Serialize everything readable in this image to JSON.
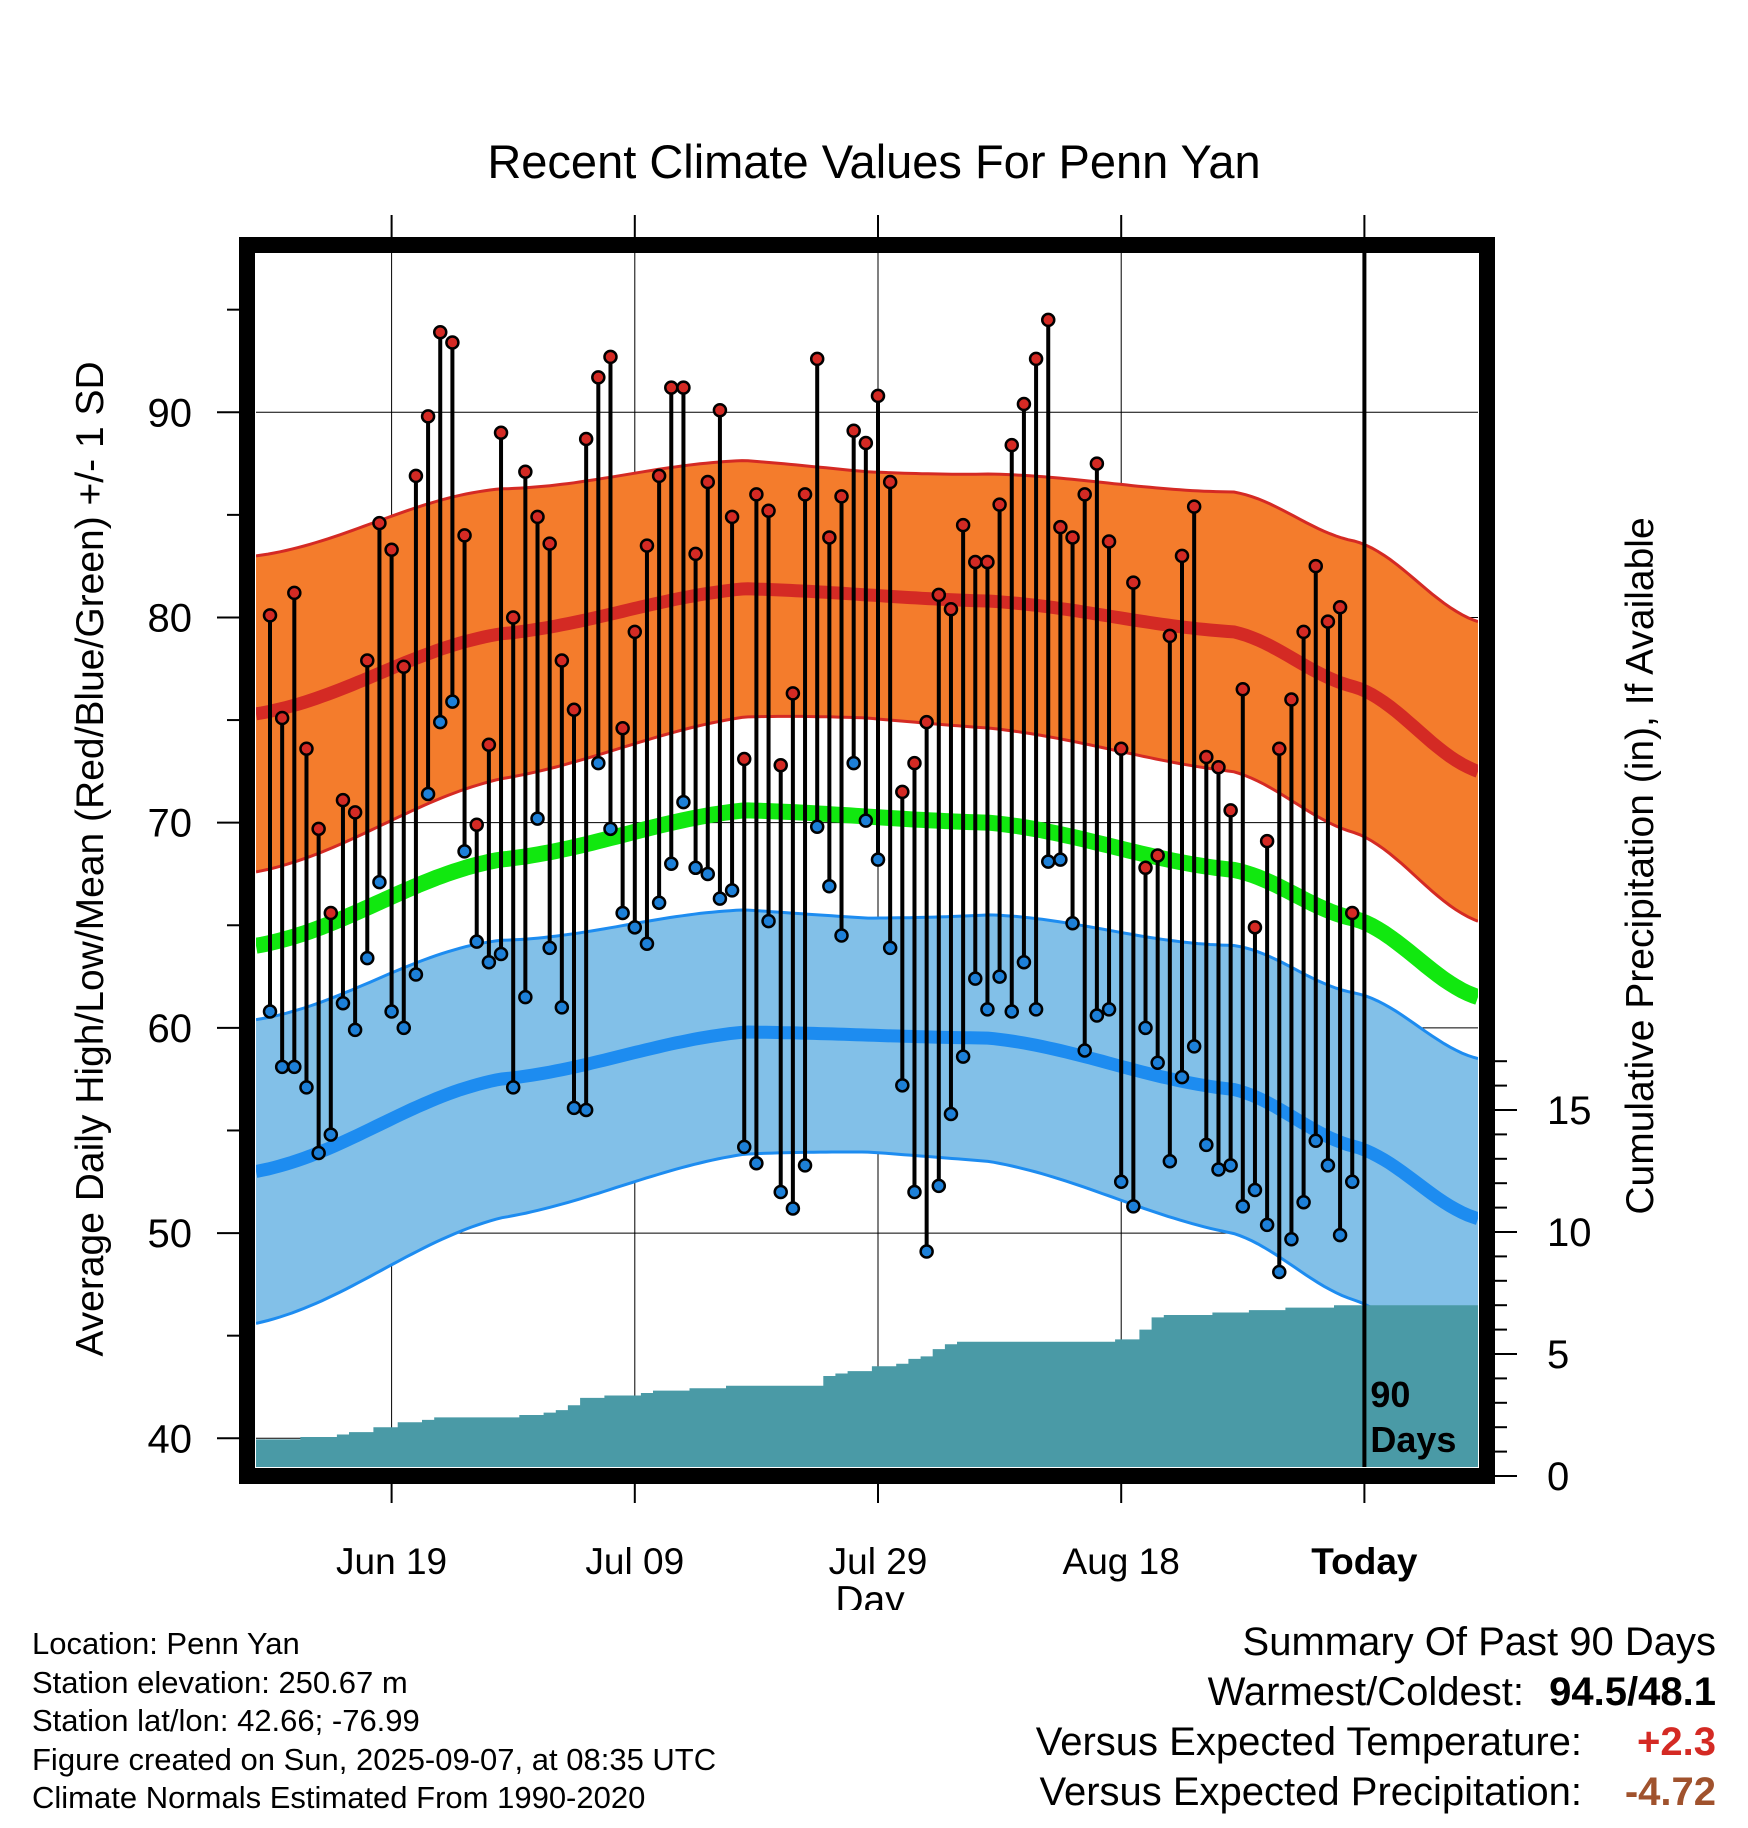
{
  "chart_data": {
    "type": "line",
    "title": "Recent Climate Values For Penn Yan",
    "xlabel": "Day",
    "ylabel": "Average Daily High/Low/Mean (Red/Blue/Green) +/- 1 SD",
    "y2label": "Cumulative Precipitation (in), If Available",
    "x_tick_labels": [
      "Jun 19",
      "Jul 09",
      "Jul 29",
      "Aug 18",
      "Today"
    ],
    "y_ticks": [
      40,
      50,
      60,
      70,
      80,
      90
    ],
    "y2_ticks": [
      0,
      5,
      10,
      15
    ],
    "ylim": [
      38.6,
      98.2
    ],
    "y2lim": [
      0,
      46
    ],
    "days": 90,
    "marker_label": [
      "90",
      "Days"
    ],
    "grid": true,
    "normals": {
      "high_mean": [
        [
          0,
          75.3
        ],
        [
          20,
          79.2
        ],
        [
          40,
          81.4
        ],
        [
          60,
          80.8
        ],
        [
          80,
          79.3
        ],
        [
          90,
          76.6
        ],
        [
          100,
          72.5
        ]
      ],
      "high_sd": [
        [
          0,
          7.7
        ],
        [
          50,
          6.0
        ],
        [
          100,
          7.3
        ]
      ],
      "mean_mean": [
        [
          0,
          64.0
        ],
        [
          20,
          68.2
        ],
        [
          40,
          70.6
        ],
        [
          60,
          70.0
        ],
        [
          80,
          67.7
        ],
        [
          90,
          65.3
        ],
        [
          100,
          61.5
        ]
      ],
      "low_mean": [
        [
          0,
          53.0
        ],
        [
          20,
          57.5
        ],
        [
          40,
          59.8
        ],
        [
          60,
          59.5
        ],
        [
          80,
          57.0
        ],
        [
          90,
          54.2
        ],
        [
          100,
          50.7
        ]
      ],
      "low_sd": [
        [
          0,
          7.4
        ],
        [
          50,
          5.7
        ],
        [
          100,
          7.8
        ]
      ]
    },
    "series": [
      {
        "name": "High",
        "values": [
          80.1,
          75.1,
          81.2,
          73.6,
          69.7,
          65.6,
          71.1,
          70.5,
          77.9,
          84.6,
          83.3,
          77.6,
          86.9,
          89.8,
          93.9,
          93.4,
          84.0,
          69.9,
          73.8,
          89.0,
          80.0,
          87.1,
          84.9,
          83.6,
          77.9,
          75.5,
          88.7,
          91.7,
          92.7,
          74.6,
          79.3,
          83.5,
          86.9,
          91.2,
          91.2,
          83.1,
          86.6,
          90.1,
          84.9,
          73.1,
          86.0,
          85.2,
          72.8,
          76.3,
          86.0,
          92.6,
          83.9,
          85.9,
          89.1,
          88.5,
          90.8,
          86.6,
          71.5,
          72.9,
          74.9,
          81.1,
          80.4,
          84.5,
          82.7,
          82.7,
          85.5,
          88.4,
          90.4,
          92.6,
          94.5,
          84.4,
          83.9,
          86.0,
          87.5,
          83.7,
          73.6,
          81.7,
          67.8,
          68.4,
          79.1,
          83.0,
          85.4,
          73.2,
          72.7,
          70.6,
          76.5,
          64.9,
          69.1,
          73.6,
          76.0,
          79.3,
          82.5,
          79.8,
          80.5,
          65.6
        ]
      },
      {
        "name": "Low",
        "values": [
          60.8,
          58.1,
          58.1,
          57.1,
          53.9,
          54.8,
          61.2,
          59.9,
          63.4,
          67.1,
          60.8,
          60.0,
          62.6,
          71.4,
          74.9,
          75.9,
          68.6,
          64.2,
          63.2,
          63.6,
          57.1,
          61.5,
          70.2,
          63.9,
          61.0,
          56.1,
          56.0,
          72.9,
          69.7,
          65.6,
          64.9,
          64.1,
          66.1,
          68.0,
          71.0,
          67.8,
          67.5,
          66.3,
          66.7,
          54.2,
          53.4,
          65.2,
          52.0,
          51.2,
          53.3,
          69.8,
          66.9,
          64.5,
          72.9,
          70.1,
          68.2,
          63.9,
          57.2,
          52.0,
          49.1,
          52.3,
          55.8,
          58.6,
          62.4,
          60.9,
          62.5,
          60.8,
          63.2,
          60.9,
          68.1,
          68.2,
          65.1,
          58.9,
          60.6,
          60.9,
          52.5,
          51.3,
          60.0,
          58.3,
          53.5,
          57.6,
          59.1,
          54.3,
          53.1,
          53.3,
          51.3,
          52.1,
          50.4,
          48.1,
          49.7,
          51.5,
          54.5,
          53.3,
          49.9,
          52.5
        ]
      }
    ],
    "precip_cumulative": [
      1.5,
      1.5,
      1.5,
      1.6,
      1.6,
      1.6,
      1.7,
      1.8,
      1.8,
      2.0,
      2.0,
      2.2,
      2.2,
      2.3,
      2.4,
      2.4,
      2.4,
      2.4,
      2.4,
      2.4,
      2.4,
      2.5,
      2.5,
      2.6,
      2.7,
      2.9,
      3.2,
      3.2,
      3.3,
      3.3,
      3.3,
      3.4,
      3.5,
      3.5,
      3.5,
      3.6,
      3.6,
      3.6,
      3.7,
      3.7,
      3.7,
      3.7,
      3.7,
      3.7,
      3.7,
      3.7,
      4.1,
      4.2,
      4.3,
      4.3,
      4.5,
      4.5,
      4.6,
      4.8,
      4.9,
      5.2,
      5.4,
      5.5,
      5.5,
      5.5,
      5.5,
      5.5,
      5.5,
      5.5,
      5.5,
      5.5,
      5.5,
      5.5,
      5.5,
      5.5,
      5.6,
      5.6,
      6.0,
      6.5,
      6.6,
      6.6,
      6.6,
      6.6,
      6.7,
      6.7,
      6.7,
      6.8,
      6.8,
      6.8,
      6.9,
      6.9,
      6.9,
      6.9,
      7.0,
      7.0
    ]
  },
  "colors": {
    "high_band": "#f47c2c",
    "high_line": "#d42a24",
    "low_band": "#82c0e8",
    "low_line": "#1d8cf0",
    "mean_line": "#11e80f",
    "precip": "#4a9aa6",
    "high_marker": "#d42a24",
    "low_marker": "#1d80d8"
  },
  "info": {
    "location": "Location: Penn Yan",
    "elevation": "Station elevation: 250.67 m",
    "latlon": "Station lat/lon: 42.66; -76.99",
    "created": "Figure created on Sun, 2025-09-07, at 08:35 UTC",
    "normals": "Climate Normals Estimated From 1990-2020"
  },
  "summary": {
    "title": "Summary Of Past 90 Days",
    "warmest_label": "Warmest/Coldest:",
    "warmest_value": "94.5/48.1",
    "temp_label": "Versus Expected Temperature:",
    "temp_value": "+2.3",
    "temp_color": "#d42a24",
    "precip_label": "Versus Expected Precipitation:",
    "precip_value": "-4.72",
    "precip_color": "#a0522d"
  }
}
